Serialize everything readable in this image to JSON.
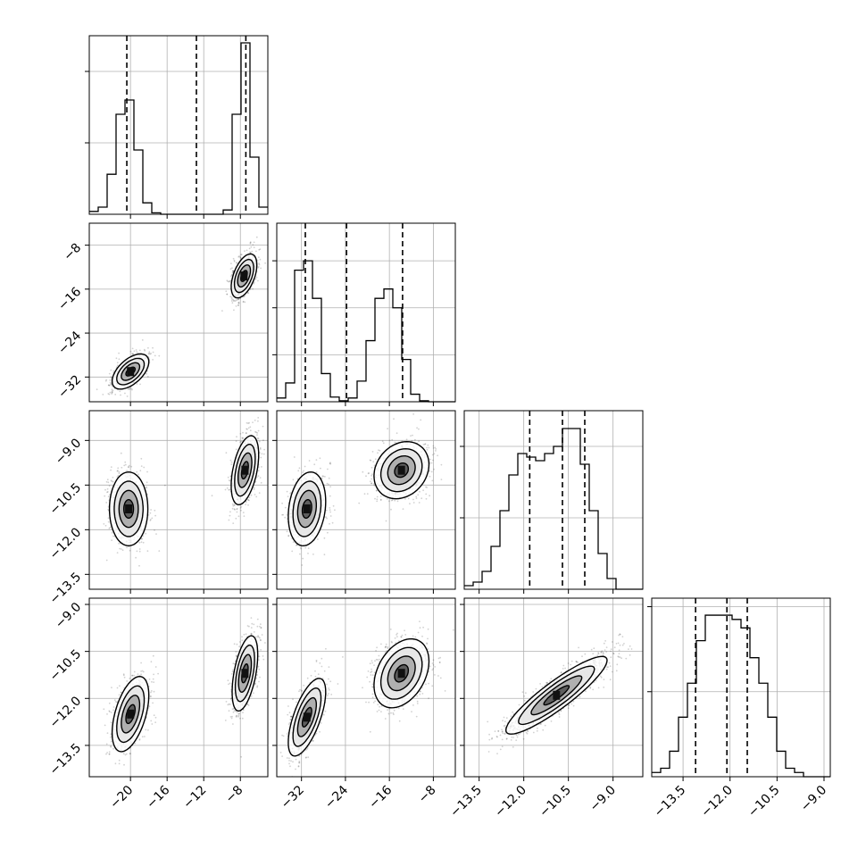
{
  "chart_data": {
    "type": "corner",
    "title": "",
    "parameters": [
      {
        "name": "",
        "range": [
          -24.5,
          -5.0
        ],
        "ticks": [
          -20,
          -16,
          -12,
          -8
        ],
        "tick_labels": [
          "−20",
          "−16",
          "−12",
          "−8"
        ]
      },
      {
        "name": "",
        "range": [
          -36.5,
          -4.0
        ],
        "ticks": [
          -32,
          -24,
          -16,
          -8
        ],
        "tick_labels": [
          "−32",
          "−24",
          "−16",
          "−8"
        ]
      },
      {
        "name": "",
        "range": [
          -14.0,
          -8.0
        ],
        "ticks": [
          -13.5,
          -12.0,
          -10.5,
          -9.0
        ],
        "tick_labels": [
          "−13.5",
          "−12.0",
          "−10.5",
          "−9.0"
        ]
      },
      {
        "name": "",
        "range": [
          -14.5,
          -8.8
        ],
        "ticks": [
          -13.5,
          -12.0,
          -10.5,
          -9.0
        ],
        "tick_labels": [
          "−13.5",
          "−12.0",
          "−10.5",
          "−9.0"
        ]
      }
    ],
    "histograms": [
      {
        "param": 0,
        "bins_start": -24.5,
        "bins_width": 0.975,
        "counts": [
          2,
          5,
          28,
          70,
          80,
          45,
          8,
          1,
          0,
          0,
          0,
          0,
          0,
          0,
          0,
          3,
          70,
          120,
          40,
          5
        ],
        "quantiles": [
          -20.4,
          -12.8,
          -7.4
        ],
        "ylim": [
          0,
          125
        ],
        "yticks": [
          50,
          100
        ]
      },
      {
        "param": 1,
        "bins_start": -36.5,
        "bins_width": 1.625,
        "counts": [
          4,
          20,
          140,
          150,
          110,
          30,
          5,
          1,
          4,
          22,
          65,
          110,
          120,
          100,
          45,
          8,
          1,
          0,
          0,
          0
        ],
        "quantiles": [
          -31.3,
          -23.8,
          -13.6
        ],
        "ylim": [
          0,
          190
        ],
        "yticks": [
          50,
          100,
          150
        ]
      },
      {
        "param": 2,
        "bins_start": -14.0,
        "bins_width": 0.3,
        "counts": [
          1,
          2,
          5,
          12,
          22,
          32,
          38,
          37,
          36,
          38,
          40,
          45,
          45,
          35,
          22,
          10,
          3,
          0,
          0,
          0
        ],
        "quantiles": [
          -11.8,
          -10.7,
          -9.95
        ],
        "ylim": [
          0,
          50
        ],
        "yticks": [
          20,
          40
        ]
      },
      {
        "param": 3,
        "bins_start": -14.5,
        "bins_width": 0.285,
        "counts": [
          1,
          2,
          6,
          14,
          22,
          32,
          38,
          38,
          38,
          37,
          35,
          28,
          22,
          14,
          6,
          2,
          1,
          0,
          0,
          0
        ],
        "quantiles": [
          -13.1,
          -12.1,
          -11.45
        ],
        "ylim": [
          0,
          42
        ],
        "yticks": [
          20,
          40
        ]
      }
    ],
    "scatter_panels": [
      {
        "x_param": 0,
        "y_param": 1,
        "blobs": [
          {
            "mx": -20.0,
            "my": -31.0,
            "sx": 1.0,
            "sy": 1.6,
            "rho": 0.55,
            "w": 0.45
          },
          {
            "mx": -7.6,
            "my": -13.6,
            "sx": 0.7,
            "sy": 2.0,
            "rho": 0.5,
            "w": 0.55
          }
        ]
      },
      {
        "x_param": 0,
        "y_param": 2,
        "blobs": [
          {
            "mx": -20.2,
            "my": -11.3,
            "sx": 1.05,
            "sy": 0.62,
            "rho": 0.0,
            "w": 0.45
          },
          {
            "mx": -7.5,
            "my": -10.0,
            "sx": 0.75,
            "sy": 0.58,
            "rho": 0.45,
            "w": 0.55
          }
        ]
      },
      {
        "x_param": 1,
        "y_param": 2,
        "blobs": [
          {
            "mx": -31.0,
            "my": -11.3,
            "sx": 1.7,
            "sy": 0.62,
            "rho": 0.2,
            "w": 0.45
          },
          {
            "mx": -13.8,
            "my": -10.0,
            "sx": 2.5,
            "sy": 0.48,
            "rho": 0.2,
            "w": 0.55
          }
        ]
      },
      {
        "x_param": 0,
        "y_param": 3,
        "blobs": [
          {
            "mx": -20.0,
            "my": -12.5,
            "sx": 1.0,
            "sy": 0.6,
            "rho": 0.5,
            "w": 0.45
          },
          {
            "mx": -7.5,
            "my": -11.2,
            "sx": 0.7,
            "sy": 0.6,
            "rho": 0.5,
            "w": 0.55
          }
        ]
      },
      {
        "x_param": 1,
        "y_param": 3,
        "blobs": [
          {
            "mx": -31.0,
            "my": -12.6,
            "sx": 1.7,
            "sy": 0.62,
            "rho": 0.65,
            "w": 0.45
          },
          {
            "mx": -13.8,
            "my": -11.2,
            "sx": 2.5,
            "sy": 0.55,
            "rho": 0.35,
            "w": 0.55
          }
        ]
      },
      {
        "x_param": 2,
        "y_param": 3,
        "blobs": [
          {
            "mx": -10.9,
            "my": -11.9,
            "sx": 0.85,
            "sy": 0.62,
            "rho": 0.9,
            "w": 1.0
          }
        ]
      }
    ],
    "contour_levels_sigma": [
      0.5,
      1.0,
      1.5,
      2.0
    ],
    "grid": true,
    "colors": {
      "line": "#000000",
      "points": "#000000",
      "grid": "#b0b0b0",
      "background": "#ffffff"
    }
  }
}
